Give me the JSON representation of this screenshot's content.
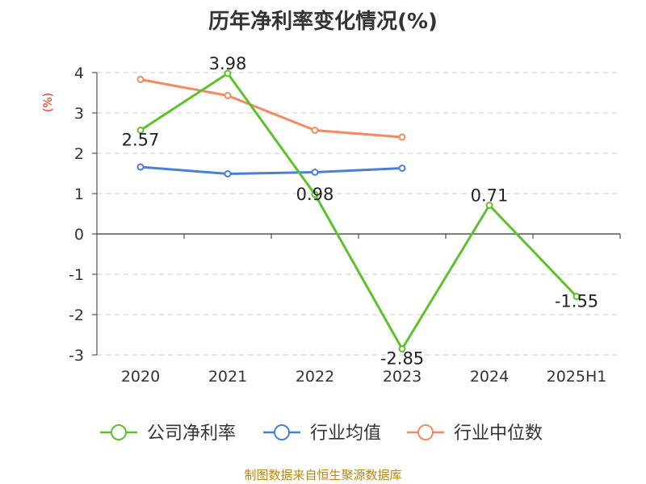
{
  "title": "历年净利率变化情况(%)",
  "source": "制图数据来自恒生聚源数据库",
  "chart_data": {
    "type": "line",
    "title": "历年净利率变化情况(%)",
    "ylabel": "(%)",
    "xlabel": "",
    "categories": [
      "2020",
      "2021",
      "2022",
      "2023",
      "2024",
      "2025H1"
    ],
    "ylim": [
      -3,
      4
    ],
    "yticks": [
      4,
      3,
      2,
      1,
      0,
      -1,
      -2,
      -3
    ],
    "grid": true,
    "legend_position": "bottom",
    "series": [
      {
        "name": "公司净利率",
        "values": [
          2.57,
          3.98,
          0.98,
          -2.85,
          0.71,
          -1.55
        ],
        "color": "#5cc12a",
        "labels": [
          "2.57",
          "3.98",
          "0.98",
          "-2.85",
          "0.71",
          "-1.55"
        ]
      },
      {
        "name": "行业均值",
        "values": [
          1.66,
          1.49,
          1.53,
          1.63,
          null,
          null
        ],
        "color": "#4a7fd6"
      },
      {
        "name": "行业中位数",
        "values": [
          3.83,
          3.43,
          2.57,
          2.4,
          null,
          null
        ],
        "color": "#f4895f"
      }
    ]
  }
}
